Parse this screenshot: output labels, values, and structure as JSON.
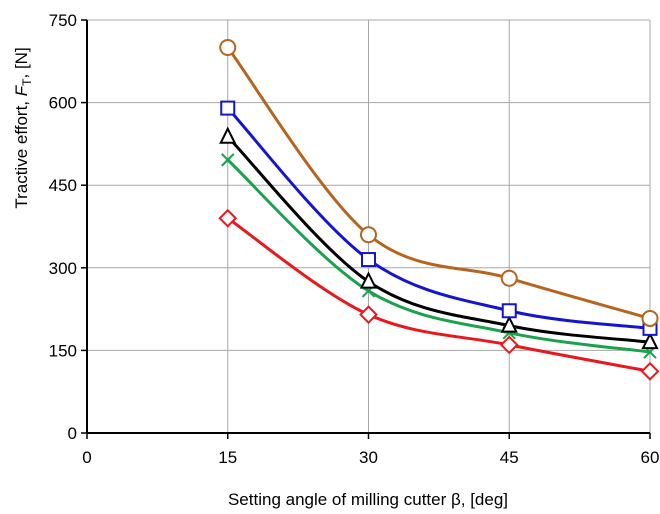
{
  "chart_data": {
    "type": "line",
    "title": "",
    "xlabel": "Setting angle of milling cutter β, [deg]",
    "ylabel": {
      "prefix": "Tractive effort, ",
      "symbol": "F",
      "subscript": "T",
      "suffix": ", [N]"
    },
    "xlim": [
      0,
      60
    ],
    "ylim": [
      0,
      750
    ],
    "xticks": [
      0,
      15,
      30,
      45,
      60
    ],
    "yticks": [
      0,
      150,
      300,
      450,
      600,
      750
    ],
    "grid": true,
    "legend": "none",
    "x": [
      15,
      30,
      45,
      60
    ],
    "series": [
      {
        "marker": "circle",
        "color": "#b5651d",
        "values": [
          700,
          360,
          281,
          208
        ]
      },
      {
        "marker": "square",
        "color": "#1515d0",
        "values": [
          590,
          315,
          222,
          190
        ]
      },
      {
        "marker": "triangle",
        "color": "#000000",
        "values": [
          538,
          275,
          195,
          165
        ]
      },
      {
        "marker": "cross",
        "color": "#1aa34a",
        "values": [
          496,
          258,
          182,
          147
        ]
      },
      {
        "marker": "diamond",
        "color": "#e8191d",
        "values": [
          390,
          215,
          160,
          112
        ]
      }
    ]
  }
}
